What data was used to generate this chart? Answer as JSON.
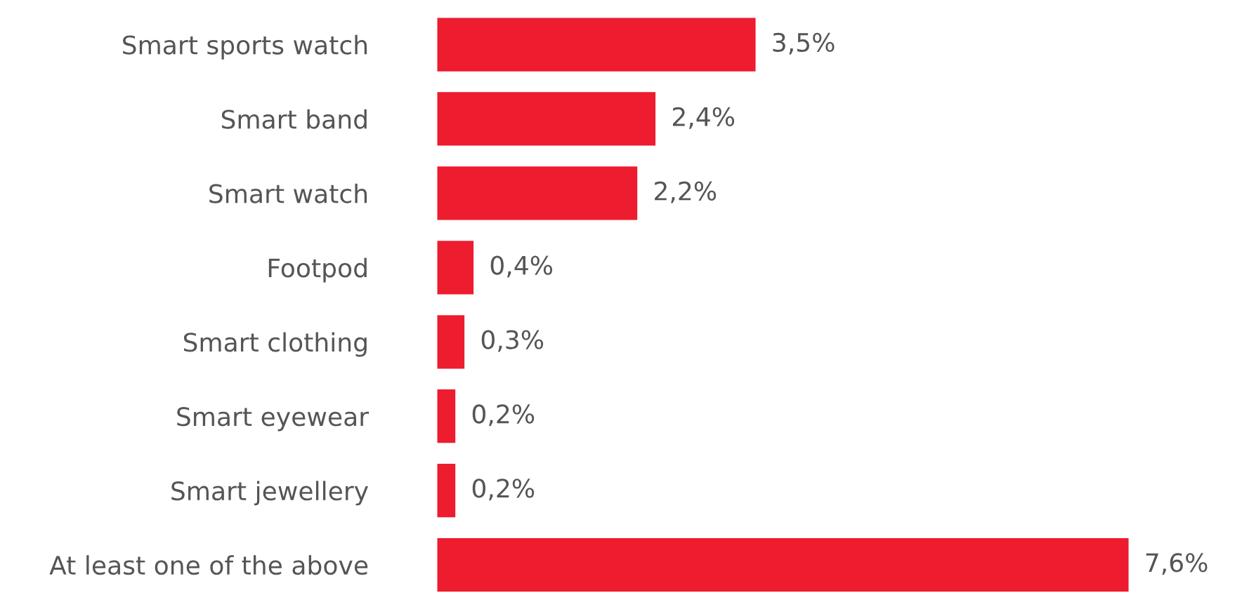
{
  "chart_data": {
    "type": "bar",
    "orientation": "horizontal",
    "categories": [
      "Smart sports watch",
      "Smart band",
      "Smart watch",
      "Footpod",
      "Smart clothing",
      "Smart eyewear",
      "Smart jewellery",
      "At least one of the above"
    ],
    "values": [
      3.5,
      2.4,
      2.2,
      0.4,
      0.3,
      0.2,
      0.2,
      7.6
    ],
    "value_labels": [
      "3,5%",
      "2,4%",
      "2,2%",
      "0,4%",
      "0,3%",
      "0,2%",
      "0,2%",
      "7,6%"
    ],
    "color": "#ed1c2e",
    "tick_labels": "y"
  }
}
